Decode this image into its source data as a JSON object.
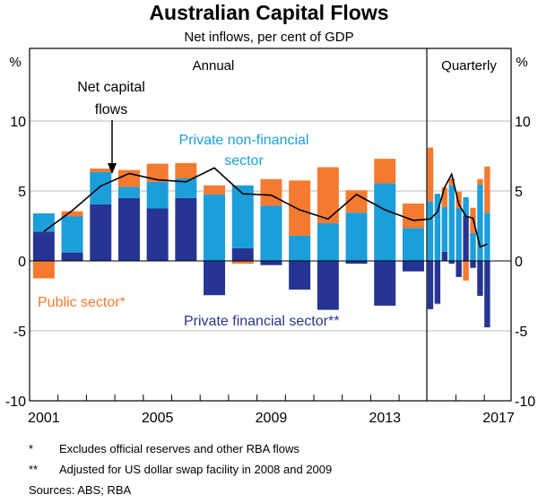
{
  "chart_data": {
    "type": "bar",
    "stacked": true,
    "title": "Australian Capital Flows",
    "subtitle": "Net inflows, per cent of GDP",
    "ylabel_left": "%",
    "ylabel_right": "%",
    "ylim": [
      -10,
      15
    ],
    "yticks": [
      -10,
      -5,
      0,
      5,
      10
    ],
    "grid": true,
    "panels": [
      {
        "label": "Annual",
        "categories": [
          "2001",
          "2002",
          "2003",
          "2004",
          "2005",
          "2006",
          "2007",
          "2008",
          "2009",
          "2010",
          "2011",
          "2012",
          "2013",
          "2014"
        ]
      },
      {
        "label": "Quarterly",
        "categories": [
          "2015Q1",
          "2015Q2",
          "2015Q3",
          "2015Q4",
          "2016Q1",
          "2016Q2",
          "2016Q3",
          "2016Q4",
          "2017Q1"
        ]
      }
    ],
    "xtick_labels": [
      "2001",
      "2005",
      "2009",
      "2013",
      "2017"
    ],
    "series": [
      {
        "name": "Private financial sector**",
        "kind": "bar",
        "color": "#263593",
        "values": [
          2.1,
          0.6,
          4.05,
          4.5,
          3.75,
          4.5,
          -2.45,
          0.9,
          -0.3,
          -2.05,
          -3.5,
          -0.2,
          -3.2,
          -0.75,
          -3.45,
          -3.05,
          0.65,
          -0.2,
          -1.15,
          3.2,
          -0.5,
          -2.5,
          -4.75
        ]
      },
      {
        "name": "Private non-financial sector",
        "kind": "bar",
        "color": "#1b9ed9",
        "values": [
          1.3,
          2.6,
          2.3,
          0.8,
          1.9,
          1.4,
          4.75,
          4.5,
          3.95,
          1.8,
          2.7,
          3.45,
          5.55,
          2.35,
          4.25,
          4.8,
          3.2,
          5.4,
          3.75,
          1.35,
          2.0,
          5.45,
          3.45
        ]
      },
      {
        "name": "Public sector*",
        "kind": "bar",
        "color": "#f47a2f",
        "values": [
          -1.25,
          0.35,
          0.25,
          1.2,
          1.3,
          1.1,
          0.65,
          -0.2,
          1.9,
          3.95,
          4.0,
          1.6,
          1.75,
          1.75,
          3.85,
          -0.05,
          1.4,
          0.5,
          1.2,
          -1.4,
          1.8,
          0.4,
          3.3
        ]
      },
      {
        "name": "Net capital flows",
        "kind": "line",
        "color": "#000000",
        "values": [
          2.1,
          3.6,
          5.35,
          6.25,
          5.8,
          5.65,
          6.65,
          4.8,
          4.7,
          3.65,
          3.0,
          4.75,
          3.65,
          2.9,
          3.0,
          3.5,
          5.25,
          6.2,
          4.05,
          3.2,
          3.05,
          1.0,
          1.2
        ]
      }
    ],
    "annotations": {
      "net_line1": "Net capital",
      "net_line2": "flows",
      "nonfin_line1": "Private non-financial",
      "nonfin_line2": "sector",
      "public": "Public sector*",
      "financial": "Private financial sector**"
    },
    "footnotes": [
      {
        "mark": "*",
        "text": "Excludes official reserves and other RBA flows"
      },
      {
        "mark": "**",
        "text": "Adjusted for US dollar swap facility in 2008 and 2009"
      }
    ],
    "sources": "Sources: ABS; RBA"
  }
}
